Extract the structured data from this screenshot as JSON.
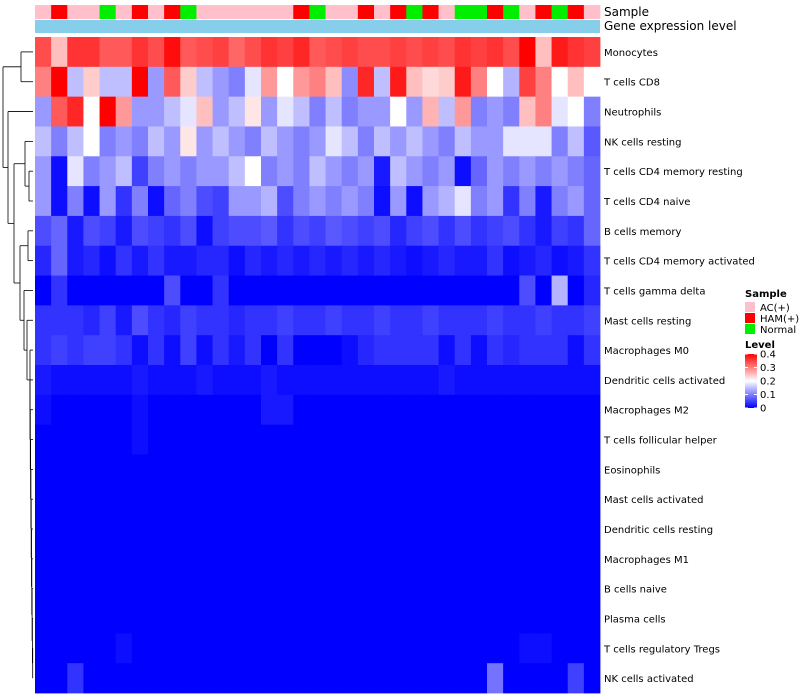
{
  "chart_data": {
    "type": "heatmap",
    "row_labels": [
      "Monocytes",
      "T cells CD8",
      "Neutrophils",
      "NK cells resting",
      "T cells CD4 memory resting",
      "T cells CD4 naive",
      "B cells memory",
      "T cells CD4 memory activated",
      "T cells gamma delta",
      "Mast cells resting",
      "Macrophages M0",
      "Dendritic cells activated",
      "Macrophages M2",
      "T cells follicular helper",
      "Eosinophils",
      "Mast cells activated",
      "Dendritic cells resting",
      "Macrophages M1",
      "B cells naive",
      "Plasma cells",
      "T cells regulatory  Tregs",
      "NK cells activated"
    ],
    "annotations": {
      "sample_label": "Sample",
      "gene_label": "Gene expression level",
      "sample": [
        "AC(+)",
        "HAM(+)",
        "AC(+)",
        "AC(+)",
        "Normal",
        "AC(+)",
        "HAM(+)",
        "AC(+)",
        "HAM(+)",
        "Normal",
        "AC(+)",
        "AC(+)",
        "AC(+)",
        "AC(+)",
        "AC(+)",
        "AC(+)",
        "HAM(+)",
        "Normal",
        "AC(+)",
        "AC(+)",
        "HAM(+)",
        "AC(+)",
        "HAM(+)",
        "Normal",
        "HAM(+)",
        "AC(+)",
        "Normal",
        "Normal",
        "HAM(+)",
        "Normal",
        "AC(+)",
        "HAM(+)",
        "Normal",
        "HAM(+)",
        "AC(+)"
      ]
    },
    "values": [
      [
        0.34,
        0.25,
        0.36,
        0.36,
        0.33,
        0.33,
        0.36,
        0.34,
        0.39,
        0.33,
        0.34,
        0.35,
        0.32,
        0.34,
        0.36,
        0.35,
        0.37,
        0.33,
        0.34,
        0.35,
        0.34,
        0.34,
        0.35,
        0.34,
        0.35,
        0.34,
        0.36,
        0.35,
        0.36,
        0.34,
        0.4,
        0.25,
        0.38,
        0.36,
        0.35
      ],
      [
        0.3,
        0.4,
        0.15,
        0.24,
        0.15,
        0.15,
        0.4,
        0.12,
        0.33,
        0.24,
        0.15,
        0.12,
        0.1,
        0.18,
        0.28,
        0.2,
        0.28,
        0.3,
        0.25,
        0.11,
        0.37,
        0.15,
        0.38,
        0.25,
        0.23,
        0.24,
        0.38,
        0.3,
        0.2,
        0.14,
        0.35,
        0.3,
        0.2,
        0.25,
        0.2
      ],
      [
        0.12,
        0.33,
        0.37,
        0.2,
        0.4,
        0.28,
        0.12,
        0.12,
        0.15,
        0.18,
        0.25,
        0.12,
        0.15,
        0.22,
        0.12,
        0.18,
        0.15,
        0.1,
        0.15,
        0.1,
        0.12,
        0.12,
        0.2,
        0.12,
        0.26,
        0.15,
        0.28,
        0.1,
        0.12,
        0.1,
        0.25,
        0.3,
        0.18,
        0.2,
        0.1
      ],
      [
        0.15,
        0.1,
        0.15,
        0.2,
        0.1,
        0.12,
        0.1,
        0.15,
        0.12,
        0.22,
        0.12,
        0.15,
        0.12,
        0.1,
        0.15,
        0.12,
        0.1,
        0.12,
        0.18,
        0.15,
        0.1,
        0.15,
        0.12,
        0.15,
        0.12,
        0.1,
        0.15,
        0.12,
        0.12,
        0.18,
        0.18,
        0.18,
        0.1,
        0.15,
        0.07
      ],
      [
        0.12,
        0.01,
        0.18,
        0.1,
        0.12,
        0.15,
        0.05,
        0.1,
        0.12,
        0.1,
        0.12,
        0.12,
        0.15,
        0.2,
        0.1,
        0.12,
        0.1,
        0.15,
        0.12,
        0.1,
        0.12,
        0.02,
        0.15,
        0.12,
        0.1,
        0.12,
        0.01,
        0.08,
        0.12,
        0.1,
        0.12,
        0.1,
        0.12,
        0.1,
        0.08
      ],
      [
        0.12,
        0.01,
        0.1,
        0.01,
        0.12,
        0.04,
        0.1,
        0.01,
        0.08,
        0.1,
        0.06,
        0.05,
        0.12,
        0.12,
        0.14,
        0.06,
        0.1,
        0.12,
        0.1,
        0.12,
        0.1,
        0.01,
        0.12,
        0.01,
        0.12,
        0.14,
        0.18,
        0.1,
        0.12,
        0.04,
        0.1,
        0.02,
        0.1,
        0.12,
        0.08
      ],
      [
        0.06,
        0.08,
        0.02,
        0.06,
        0.05,
        0.02,
        0.06,
        0.05,
        0.04,
        0.06,
        0.01,
        0.05,
        0.06,
        0.06,
        0.07,
        0.04,
        0.06,
        0.05,
        0.07,
        0.06,
        0.05,
        0.06,
        0.03,
        0.05,
        0.06,
        0.04,
        0.06,
        0.04,
        0.05,
        0.06,
        0.04,
        0.02,
        0.05,
        0.04,
        0.08
      ],
      [
        0.03,
        0.08,
        0.02,
        0.03,
        0.01,
        0.04,
        0.02,
        0.04,
        0.02,
        0.02,
        0.03,
        0.03,
        0.01,
        0.03,
        0.02,
        0.03,
        0.02,
        0.03,
        0.02,
        0.03,
        0.02,
        0.03,
        0.02,
        0.01,
        0.02,
        0.03,
        0.02,
        0.02,
        0.04,
        0.01,
        0.02,
        0.03,
        0.01,
        0.02,
        0.04
      ],
      [
        0.0,
        0.04,
        0.0,
        0.0,
        0.0,
        0.0,
        0.0,
        0.0,
        0.06,
        0.0,
        0.0,
        0.04,
        0.0,
        0.0,
        0.0,
        0.0,
        0.0,
        0.0,
        0.0,
        0.0,
        0.0,
        0.0,
        0.0,
        0.0,
        0.0,
        0.0,
        0.0,
        0.0,
        0.0,
        0.0,
        0.06,
        0.0,
        0.14,
        0.0,
        0.03
      ],
      [
        0.04,
        0.04,
        0.04,
        0.03,
        0.05,
        0.02,
        0.06,
        0.04,
        0.03,
        0.05,
        0.04,
        0.04,
        0.03,
        0.04,
        0.04,
        0.05,
        0.04,
        0.04,
        0.05,
        0.04,
        0.04,
        0.05,
        0.04,
        0.04,
        0.05,
        0.04,
        0.04,
        0.04,
        0.05,
        0.04,
        0.04,
        0.05,
        0.04,
        0.04,
        0.05
      ],
      [
        0.04,
        0.05,
        0.04,
        0.05,
        0.05,
        0.04,
        0.01,
        0.04,
        0.01,
        0.05,
        0.01,
        0.04,
        0.02,
        0.04,
        0.0,
        0.04,
        0.0,
        0.0,
        0.0,
        0.01,
        0.03,
        0.04,
        0.04,
        0.04,
        0.04,
        0.01,
        0.04,
        0.01,
        0.04,
        0.03,
        0.04,
        0.04,
        0.04,
        0.01,
        0.04
      ],
      [
        0.02,
        0.01,
        0.01,
        0.01,
        0.01,
        0.01,
        0.02,
        0.01,
        0.01,
        0.01,
        0.02,
        0.01,
        0.01,
        0.01,
        0.02,
        0.01,
        0.01,
        0.01,
        0.01,
        0.01,
        0.01,
        0.01,
        0.01,
        0.01,
        0.01,
        0.02,
        0.01,
        0.01,
        0.01,
        0.01,
        0.01,
        0.01,
        0.01,
        0.01,
        0.01
      ],
      [
        0.01,
        0.0,
        0.0,
        0.0,
        0.0,
        0.0,
        0.01,
        0.0,
        0.0,
        0.0,
        0.0,
        0.0,
        0.0,
        0.0,
        0.02,
        0.02,
        0.0,
        0.0,
        0.0,
        0.0,
        0.0,
        0.0,
        0.0,
        0.0,
        0.0,
        0.0,
        0.0,
        0.0,
        0.0,
        0.0,
        0.0,
        0.0,
        0.0,
        0.0,
        0.0
      ],
      [
        0.0,
        0.0,
        0.0,
        0.0,
        0.0,
        0.0,
        0.01,
        0.0,
        0.0,
        0.0,
        0.0,
        0.0,
        0.0,
        0.0,
        0.0,
        0.0,
        0.0,
        0.0,
        0.0,
        0.0,
        0.0,
        0.0,
        0.0,
        0.0,
        0.0,
        0.0,
        0.0,
        0.0,
        0.0,
        0.0,
        0.0,
        0.0,
        0.0,
        0.0,
        0.0
      ],
      [
        0.0,
        0.0,
        0.0,
        0.0,
        0.0,
        0.0,
        0.0,
        0.0,
        0.0,
        0.0,
        0.0,
        0.0,
        0.0,
        0.0,
        0.0,
        0.0,
        0.0,
        0.0,
        0.0,
        0.0,
        0.0,
        0.0,
        0.0,
        0.0,
        0.0,
        0.0,
        0.0,
        0.0,
        0.0,
        0.0,
        0.0,
        0.0,
        0.0,
        0.0,
        0.0
      ],
      [
        0.0,
        0.0,
        0.0,
        0.0,
        0.0,
        0.0,
        0.0,
        0.0,
        0.0,
        0.0,
        0.0,
        0.0,
        0.0,
        0.0,
        0.0,
        0.0,
        0.0,
        0.0,
        0.0,
        0.0,
        0.0,
        0.0,
        0.0,
        0.0,
        0.0,
        0.0,
        0.0,
        0.0,
        0.0,
        0.0,
        0.0,
        0.0,
        0.0,
        0.0,
        0.0
      ],
      [
        0.0,
        0.0,
        0.0,
        0.0,
        0.0,
        0.0,
        0.0,
        0.0,
        0.0,
        0.0,
        0.0,
        0.0,
        0.0,
        0.0,
        0.0,
        0.0,
        0.0,
        0.0,
        0.0,
        0.0,
        0.0,
        0.0,
        0.0,
        0.0,
        0.0,
        0.0,
        0.0,
        0.0,
        0.0,
        0.0,
        0.0,
        0.0,
        0.0,
        0.0,
        0.0
      ],
      [
        0.0,
        0.0,
        0.0,
        0.0,
        0.0,
        0.0,
        0.0,
        0.0,
        0.0,
        0.0,
        0.0,
        0.0,
        0.0,
        0.0,
        0.0,
        0.0,
        0.0,
        0.0,
        0.0,
        0.0,
        0.0,
        0.0,
        0.0,
        0.0,
        0.0,
        0.0,
        0.0,
        0.0,
        0.0,
        0.0,
        0.0,
        0.0,
        0.0,
        0.0,
        0.0
      ],
      [
        0.0,
        0.0,
        0.0,
        0.0,
        0.0,
        0.0,
        0.0,
        0.0,
        0.0,
        0.0,
        0.0,
        0.0,
        0.0,
        0.0,
        0.0,
        0.0,
        0.0,
        0.0,
        0.0,
        0.0,
        0.0,
        0.0,
        0.0,
        0.0,
        0.0,
        0.0,
        0.0,
        0.0,
        0.0,
        0.0,
        0.0,
        0.0,
        0.0,
        0.0,
        0.0
      ],
      [
        0.0,
        0.0,
        0.0,
        0.0,
        0.0,
        0.0,
        0.0,
        0.0,
        0.0,
        0.0,
        0.0,
        0.0,
        0.0,
        0.0,
        0.0,
        0.0,
        0.0,
        0.0,
        0.0,
        0.0,
        0.0,
        0.0,
        0.0,
        0.0,
        0.0,
        0.0,
        0.0,
        0.0,
        0.0,
        0.0,
        0.0,
        0.0,
        0.0,
        0.0,
        0.0
      ],
      [
        0.0,
        0.0,
        0.0,
        0.0,
        0.0,
        0.01,
        0.0,
        0.0,
        0.0,
        0.0,
        0.0,
        0.0,
        0.0,
        0.0,
        0.0,
        0.0,
        0.0,
        0.0,
        0.0,
        0.0,
        0.0,
        0.0,
        0.0,
        0.0,
        0.0,
        0.0,
        0.0,
        0.0,
        0.0,
        0.0,
        0.01,
        0.01,
        0.0,
        0.0,
        0.0
      ],
      [
        0.0,
        0.0,
        0.04,
        0.0,
        0.0,
        0.0,
        0.0,
        0.0,
        0.0,
        0.0,
        0.0,
        0.0,
        0.0,
        0.0,
        0.0,
        0.0,
        0.0,
        0.0,
        0.0,
        0.0,
        0.0,
        0.0,
        0.0,
        0.0,
        0.0,
        0.0,
        0.0,
        0.0,
        0.09,
        0.0,
        0.0,
        0.0,
        0.0,
        0.05,
        0.0
      ]
    ],
    "dendrogram_merges": [
      [
        4,
        5,
        0.1
      ],
      [
        7,
        8,
        0.12
      ],
      [
        9,
        10,
        0.09
      ],
      [
        11,
        12,
        0.02
      ],
      [
        13,
        14,
        0.01
      ],
      [
        15,
        16,
        0.01
      ],
      [
        17,
        18,
        0.01
      ],
      [
        19,
        20,
        0.01
      ],
      [
        0,
        1,
        0.28
      ],
      [
        3,
        4,
        0.12
      ],
      [
        6,
        7,
        0.16
      ],
      [
        8,
        9,
        0.18
      ],
      [
        12,
        13,
        0.03
      ],
      [
        16,
        17,
        0.02
      ],
      [
        10,
        11,
        0.15
      ],
      [
        14,
        15,
        0.03
      ],
      [
        18,
        19,
        0.02
      ],
      [
        20,
        21,
        0.04
      ],
      [
        2,
        3,
        0.3
      ],
      [
        6,
        8,
        0.2
      ],
      [
        11,
        12,
        0.16
      ],
      [
        15,
        16,
        0.04
      ]
    ],
    "legend": {
      "sample_title": "Sample",
      "sample_categories": [
        {
          "name": "AC(+)",
          "color": "#FFC0CB"
        },
        {
          "name": "HAM(+)",
          "color": "#FF0000"
        },
        {
          "name": "Normal",
          "color": "#00EE00"
        }
      ],
      "level_title": "Level",
      "level_ticks": [
        "0.4",
        "0.3",
        "0.2",
        "0.1",
        "0"
      ],
      "level_tick_values": [
        0.4,
        0.3,
        0.2,
        0.1,
        0
      ],
      "range": [
        0,
        0.4
      ]
    },
    "colors": {
      "low": "#0000FF",
      "mid": "#FFFFFF",
      "high": "#FF0000",
      "gene_bar": "#87CEEB"
    }
  }
}
